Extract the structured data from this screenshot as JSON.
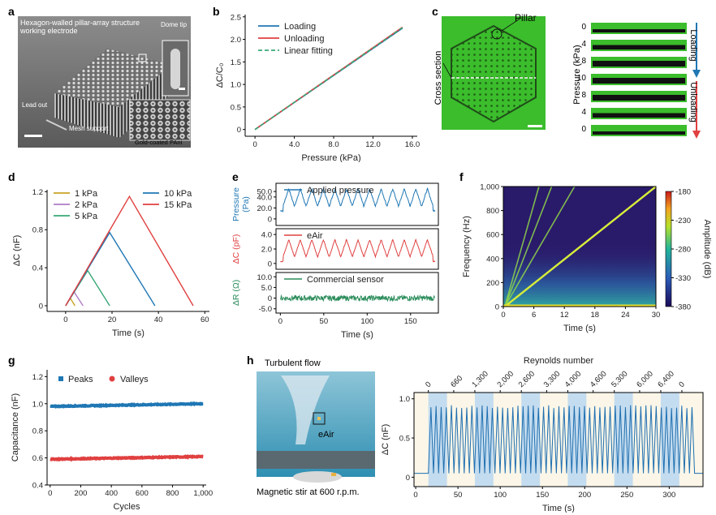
{
  "panel_labels": [
    "a",
    "b",
    "c",
    "d",
    "e",
    "f",
    "g",
    "h"
  ],
  "a": {
    "title": "Hexagon-walled pillar-array structure\nworking electrode",
    "title_line1": "Hexagon-walled pillar-array structure",
    "title_line2": "working electrode",
    "dome_tip": "Dome tip",
    "lead_out": "Lead out",
    "mesh_support": "Mesh support",
    "gold_coated": "Gold-coated PAni"
  },
  "c": {
    "pillar": "Pillar",
    "cross_section": "Cross section",
    "ylabel": "Pressure (kPa)",
    "pressures": [
      "0",
      "4",
      "8",
      "10",
      "8",
      "4",
      "0"
    ],
    "loading": "Loading",
    "unloading": "Unloading",
    "colors": {
      "loading": "#1f77b4",
      "unloading": "#e04040",
      "green": "#3bbd2c"
    }
  },
  "e": {
    "legend": [
      "Applied pressure",
      "eAir",
      "Commercial sensor"
    ],
    "ylabels": [
      "Pressure\n(Pa)",
      "ΔC (pF)",
      "ΔR (Ω)"
    ],
    "ylabel_parts": [
      [
        "Pressure",
        "(Pa)"
      ],
      [
        "ΔC (pF)"
      ],
      [
        "ΔR (Ω)"
      ]
    ],
    "xlabel": "Time (s)"
  },
  "f": {
    "xlabel": "Time (s)",
    "ylabel": "Frequency (Hz)",
    "cbar_label": "Amplitude (dB)",
    "cbar_ticks": [
      "-180",
      "-230",
      "-280",
      "-330",
      "-380"
    ]
  },
  "h": {
    "turbulent": "Turbulent flow",
    "eair": "eAir",
    "stir": "Magnetic stir at 600 r.p.m.",
    "reynolds_title": "Reynolds number",
    "xlabel": "Time (s)",
    "ylabel": "ΔC (nF)"
  },
  "chart_data": [
    {
      "id": "b",
      "type": "line",
      "xlabel": "Pressure (kPa)",
      "ylabel": "ΔC/C₀",
      "xlim": [
        -1,
        16.5
      ],
      "ylim": [
        -0.15,
        2.55
      ],
      "xticks": [
        "0",
        "4.0",
        "8.0",
        "12.0",
        "16.0"
      ],
      "xtick_values": [
        0,
        4,
        8,
        12,
        16
      ],
      "yticks": [
        "0",
        "0.5",
        "1.0",
        "1.5",
        "2.0",
        "2.5"
      ],
      "ytick_values": [
        0,
        0.5,
        1.0,
        1.5,
        2.0,
        2.5
      ],
      "series": [
        {
          "name": "Loading",
          "color": "#1f77b4",
          "x": [
            0,
            15
          ],
          "y": [
            0,
            2.25
          ]
        },
        {
          "name": "Unloading",
          "color": "#e04040",
          "x": [
            0,
            15
          ],
          "y": [
            0,
            2.27
          ]
        },
        {
          "name": "Linear fitting",
          "color": "#3aa876",
          "dashed": true,
          "x": [
            0,
            15
          ],
          "y": [
            0,
            2.26
          ]
        }
      ]
    },
    {
      "id": "d",
      "type": "line",
      "xlabel": "Time (s)",
      "ylabel": "ΔC (nF)",
      "xlim": [
        -8,
        62
      ],
      "ylim": [
        -0.06,
        1.22
      ],
      "xticks": [
        "0",
        "20",
        "40",
        "60"
      ],
      "xtick_values": [
        0,
        20,
        40,
        60
      ],
      "yticks": [
        "0",
        "0.4",
        "0.8",
        "1.2"
      ],
      "ytick_values": [
        0,
        0.4,
        0.8,
        1.2
      ],
      "series": [
        {
          "name": "1 kPa",
          "color": "#c9a227",
          "x": [
            0,
            2,
            4
          ],
          "y": [
            0,
            0.08,
            0
          ]
        },
        {
          "name": "2 kPa",
          "color": "#b07cc6",
          "x": [
            0,
            3.5,
            7.5
          ],
          "y": [
            0,
            0.15,
            0
          ]
        },
        {
          "name": "5 kPa",
          "color": "#3aa876",
          "x": [
            0,
            9.5,
            19
          ],
          "y": [
            0,
            0.37,
            0
          ]
        },
        {
          "name": "10 kPa",
          "color": "#1f77b4",
          "x": [
            0,
            19,
            38.5
          ],
          "y": [
            0,
            0.77,
            0
          ]
        },
        {
          "name": "15 kPa",
          "color": "#e04040",
          "x": [
            0,
            27.5,
            55
          ],
          "y": [
            0,
            1.15,
            0
          ]
        }
      ]
    },
    {
      "id": "e",
      "type": "line",
      "xlabel": "Time (s)",
      "xlim": [
        -5,
        182
      ],
      "xticks": [
        "0",
        "50",
        "100",
        "150"
      ],
      "xtick_values": [
        0,
        50,
        100,
        150
      ],
      "series": [
        {
          "name": "Applied pressure",
          "color": "#1f77b4",
          "ylim": [
            -12,
            65
          ],
          "yticks": [
            "0",
            "20.0",
            "40.0",
            "50.0"
          ],
          "ytick_values": [
            0,
            20,
            40,
            50
          ],
          "base": 15,
          "amp": 40,
          "cycles": 13,
          "noise": 3
        },
        {
          "name": "eAir",
          "color": "#e04040",
          "ylim": [
            -0.8,
            4.8
          ],
          "yticks": [
            "0",
            "2.0",
            "4.0"
          ],
          "ytick_values": [
            0,
            2,
            4
          ],
          "base": 0.3,
          "amp": 3.0,
          "cycles": 13,
          "noise": 0.15
        },
        {
          "name": "Commercial sensor",
          "color": "#2a8c5a",
          "ylim": [
            -7,
            12
          ],
          "yticks": [
            "-5.0",
            "0",
            "5.0",
            "10.0"
          ],
          "ytick_values": [
            -5,
            0,
            5,
            10
          ],
          "base": 0,
          "amp": 0,
          "cycles": 0,
          "noise": 2.5
        }
      ]
    },
    {
      "id": "f",
      "type": "heatmap",
      "xlabel": "Time (s)",
      "ylabel": "Frequency (Hz)",
      "xlim": [
        0,
        30
      ],
      "ylim": [
        0,
        1000
      ],
      "xticks": [
        "0",
        "6",
        "12",
        "18",
        "24",
        "30"
      ],
      "xtick_values": [
        0,
        6,
        12,
        18,
        24,
        30
      ],
      "yticks": [
        "0",
        "200",
        "400",
        "600",
        "800",
        "1,000"
      ],
      "ytick_values": [
        0,
        200,
        400,
        600,
        800,
        1000
      ],
      "cbar_range": [
        -380,
        -180
      ]
    },
    {
      "id": "g",
      "type": "scatter",
      "xlabel": "Cycles",
      "ylabel": "Capacitance (nF)",
      "xlim": [
        -20,
        1020
      ],
      "ylim": [
        0.4,
        1.25
      ],
      "xticks": [
        "0",
        "200",
        "400",
        "600",
        "800",
        "1,000"
      ],
      "xtick_values": [
        0,
        200,
        400,
        600,
        800,
        1000
      ],
      "yticks": [
        "0.4",
        "0.6",
        "0.8",
        "1.0",
        "1.2"
      ],
      "ytick_values": [
        0.4,
        0.6,
        0.8,
        1.0,
        1.2
      ],
      "series": [
        {
          "name": "Peaks",
          "color": "#1f77b4",
          "start": 0.98,
          "end": 1.0
        },
        {
          "name": "Valleys",
          "color": "#e04040",
          "start": 0.59,
          "end": 0.61
        }
      ]
    },
    {
      "id": "h",
      "type": "line",
      "xlabel": "Time (s)",
      "ylabel": "ΔC (nF)",
      "xlim": [
        -2,
        340
      ],
      "ylim": [
        -0.12,
        1.08
      ],
      "xticks": [
        "0",
        "50",
        "100",
        "150",
        "200",
        "250",
        "300"
      ],
      "xtick_values": [
        0,
        50,
        100,
        150,
        200,
        250,
        300
      ],
      "yticks": [
        "0",
        "0.5",
        "1.0"
      ],
      "ytick_values": [
        0,
        0.5,
        1.0
      ],
      "reynolds": [
        "0",
        "660",
        "1,300",
        "2,000",
        "2,600",
        "3,300",
        "4,000",
        "4,600",
        "5,300",
        "6,000",
        "6,400",
        "0"
      ],
      "reynolds_times": [
        15,
        45,
        70,
        100,
        125,
        155,
        180,
        210,
        235,
        265,
        290,
        315
      ],
      "shaded_bands": [
        [
          15,
          37
        ],
        [
          70,
          92
        ],
        [
          125,
          147
        ],
        [
          180,
          202
        ],
        [
          235,
          257
        ],
        [
          290,
          312
        ]
      ],
      "signal": {
        "start": 15,
        "end": 330,
        "cycles": 52,
        "peak": 0.9,
        "base": 0.05
      }
    }
  ]
}
